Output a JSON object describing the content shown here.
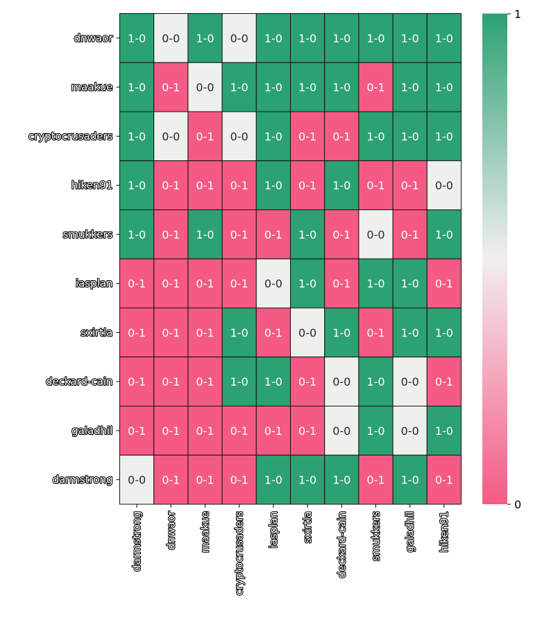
{
  "chart_data": {
    "type": "heatmap",
    "title": "",
    "xlabel": "",
    "ylabel": "",
    "row_labels": [
      "dnwaor",
      "maakue",
      "cryptocrusaders",
      "hiken91",
      "smukkers",
      "iasplan",
      "sxirtla",
      "deckard-cain",
      "galadhil",
      "darmstrong"
    ],
    "col_labels": [
      "darmstrong",
      "dnwaor",
      "maakue",
      "cryptocrusaders",
      "iasplan",
      "sxirtla",
      "deckard-cain",
      "smukkers",
      "galadhil",
      "hiken91"
    ],
    "cells": [
      [
        "1-0",
        "0-0",
        "1-0",
        "0-0",
        "1-0",
        "1-0",
        "1-0",
        "1-0",
        "1-0",
        "1-0"
      ],
      [
        "1-0",
        "0-1",
        "0-0",
        "1-0",
        "1-0",
        "1-0",
        "1-0",
        "0-1",
        "1-0",
        "1-0"
      ],
      [
        "1-0",
        "0-0",
        "0-1",
        "0-0",
        "1-0",
        "0-1",
        "0-1",
        "1-0",
        "1-0",
        "1-0"
      ],
      [
        "1-0",
        "0-1",
        "0-1",
        "0-1",
        "1-0",
        "0-1",
        "1-0",
        "0-1",
        "0-1",
        "0-0"
      ],
      [
        "1-0",
        "0-1",
        "1-0",
        "0-1",
        "0-1",
        "1-0",
        "0-1",
        "0-0",
        "0-1",
        "1-0"
      ],
      [
        "0-1",
        "0-1",
        "0-1",
        "0-1",
        "0-0",
        "1-0",
        "0-1",
        "1-0",
        "1-0",
        "0-1"
      ],
      [
        "0-1",
        "0-1",
        "0-1",
        "1-0",
        "0-1",
        "0-0",
        "1-0",
        "0-1",
        "1-0",
        "1-0"
      ],
      [
        "0-1",
        "0-1",
        "0-1",
        "1-0",
        "1-0",
        "0-1",
        "0-0",
        "1-0",
        "0-0",
        "0-1"
      ],
      [
        "0-1",
        "0-1",
        "0-1",
        "0-1",
        "0-1",
        "0-1",
        "0-0",
        "1-0",
        "0-0",
        "1-0"
      ],
      [
        "0-0",
        "0-1",
        "0-1",
        "0-1",
        "1-0",
        "1-0",
        "1-0",
        "0-1",
        "1-0",
        "0-1"
      ]
    ],
    "colorbar": {
      "min": 0,
      "max": 1,
      "ticks": [
        "0",
        "1"
      ]
    },
    "colors": {
      "win": "#2ca173",
      "loss": "#f55a84",
      "draw": "#eef0ee"
    }
  }
}
